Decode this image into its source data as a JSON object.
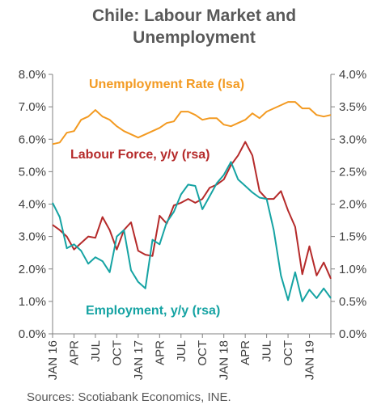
{
  "chart_data": {
    "type": "line",
    "title": [
      "Chile: Labour Market and",
      "Unemployment"
    ],
    "source": "Sources: Scotiabank Economics, INE.",
    "x_tick_labels": [
      "JAN 16",
      "APR",
      "JUL",
      "OCT",
      "JAN 17",
      "APR",
      "JUL",
      "OCT",
      "JAN 18",
      "APR",
      "JUL",
      "OCT",
      "JAN 19"
    ],
    "left_axis": {
      "ticks": [
        "0.0%",
        "1.0%",
        "2.0%",
        "3.0%",
        "4.0%",
        "5.0%",
        "6.0%",
        "7.0%",
        "8.0%"
      ],
      "ylim": [
        0,
        8
      ]
    },
    "right_axis": {
      "ticks": [
        "0.0%",
        "0.5%",
        "1.0%",
        "1.5%",
        "2.0%",
        "2.5%",
        "3.0%",
        "3.5%",
        "4.0%"
      ],
      "ylim": [
        0,
        4
      ]
    },
    "grid": false,
    "series": [
      {
        "name": "Unemployment Rate (lsa)",
        "axis": "left",
        "color": "#f39a21",
        "values": [
          5.85,
          5.9,
          6.2,
          6.25,
          6.6,
          6.7,
          6.9,
          6.7,
          6.6,
          6.4,
          6.25,
          6.15,
          6.05,
          6.15,
          6.25,
          6.35,
          6.5,
          6.55,
          6.85,
          6.85,
          6.75,
          6.6,
          6.65,
          6.65,
          6.45,
          6.4,
          6.5,
          6.6,
          6.8,
          6.65,
          6.85,
          6.95,
          7.05,
          7.15,
          7.15,
          6.95,
          6.95,
          6.75,
          6.7,
          6.75
        ]
      },
      {
        "name": "Labour Force, y/y (rsa)",
        "axis": "right",
        "color": "#b52a2a",
        "values": [
          1.68,
          1.6,
          1.5,
          1.3,
          1.4,
          1.5,
          1.48,
          1.8,
          1.6,
          1.3,
          1.6,
          1.72,
          1.28,
          1.22,
          1.2,
          1.82,
          1.7,
          1.98,
          2.02,
          2.08,
          2.02,
          2.08,
          2.25,
          2.3,
          2.38,
          2.6,
          2.75,
          2.96,
          2.75,
          2.2,
          2.08,
          2.08,
          2.2,
          1.9,
          1.65,
          0.92,
          1.35,
          0.9,
          1.1,
          0.85
        ]
      },
      {
        "name": "Employment, y/y (rsa)",
        "axis": "right",
        "color": "#15a3a3",
        "values": [
          2.02,
          1.8,
          1.32,
          1.38,
          1.28,
          1.08,
          1.18,
          1.12,
          0.95,
          1.5,
          1.6,
          0.98,
          0.8,
          0.7,
          1.45,
          1.38,
          1.72,
          1.88,
          2.15,
          2.3,
          2.28,
          1.92,
          2.12,
          2.32,
          2.45,
          2.65,
          2.38,
          2.28,
          2.18,
          2.1,
          2.08,
          1.6,
          0.9,
          0.52,
          0.95,
          0.5,
          0.68,
          0.55,
          0.7,
          0.55
        ]
      }
    ]
  }
}
